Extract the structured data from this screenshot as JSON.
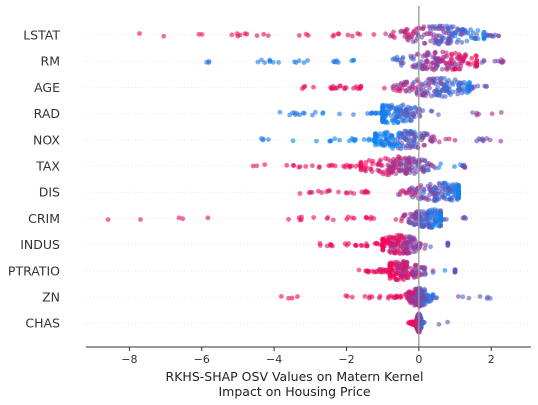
{
  "chart_data": {
    "type": "scatter",
    "subtype": "beeswarm",
    "xlabel": "RKHS-SHAP OSV Values on Matern Kernel",
    "xlabel_line2": "Impact on Housing Price",
    "xlim": [
      -9.2,
      3.1
    ],
    "x_ticks": [
      -8,
      -6,
      -4,
      -2,
      0,
      2
    ],
    "x_tick_labels": [
      "−8",
      "−6",
      "−4",
      "−2",
      "0",
      "2"
    ],
    "zero_line": 0,
    "color_low": "#008bfb",
    "color_high": "#ff0052",
    "categories": [
      "LSTAT",
      "RM",
      "AGE",
      "RAD",
      "NOX",
      "TAX",
      "DIS",
      "CRIM",
      "INDUS",
      "PTRATIO",
      "ZN",
      "CHAS"
    ],
    "features": [
      {
        "name": "LSTAT",
        "min": -8.0,
        "max": 2.5,
        "center": 0.6,
        "core": [
          -1.5,
          1.8
        ],
        "tail_color": "high"
      },
      {
        "name": "RM",
        "min": -5.9,
        "max": 2.6,
        "center": 0.6,
        "core": [
          -1.8,
          1.6
        ],
        "tail_color": "low"
      },
      {
        "name": "AGE",
        "min": -3.3,
        "max": 2.0,
        "center": 0.5,
        "core": [
          -1.6,
          1.4
        ],
        "tail_color": "high"
      },
      {
        "name": "RAD",
        "min": -4.1,
        "max": 2.5,
        "center": -0.7,
        "core": [
          -1.0,
          1.4
        ],
        "tail_color": "low"
      },
      {
        "name": "NOX",
        "min": -4.4,
        "max": 2.5,
        "center": -0.5,
        "core": [
          -1.2,
          1.6
        ],
        "tail_color": "low"
      },
      {
        "name": "TAX",
        "min": -4.8,
        "max": 1.3,
        "center": -0.6,
        "core": [
          -1.6,
          1.2
        ],
        "tail_color": "high"
      },
      {
        "name": "DIS",
        "min": -3.3,
        "max": 1.1,
        "center": 0.6,
        "core": [
          -1.4,
          1.1
        ],
        "tail_color": "high"
      },
      {
        "name": "CRIM",
        "min": -8.6,
        "max": 1.6,
        "center": 0.3,
        "core": [
          -1.2,
          0.6
        ],
        "tail_color": "high"
      },
      {
        "name": "INDUS",
        "min": -2.9,
        "max": 0.8,
        "center": -0.5,
        "core": [
          -1.0,
          0.8
        ],
        "tail_color": "high"
      },
      {
        "name": "PTRATIO",
        "min": -1.7,
        "max": 1.0,
        "center": -0.5,
        "core": [
          -0.8,
          1.0
        ],
        "tail_color": "high"
      },
      {
        "name": "ZN",
        "min": -4.3,
        "max": 2.1,
        "center": 0.0,
        "core": [
          -0.5,
          0.4
        ],
        "tail_color": "high"
      },
      {
        "name": "CHAS",
        "min": -0.3,
        "max": 0.8,
        "center": 0.0,
        "core": [
          -0.1,
          0.1
        ],
        "tail_color": "high"
      }
    ]
  }
}
